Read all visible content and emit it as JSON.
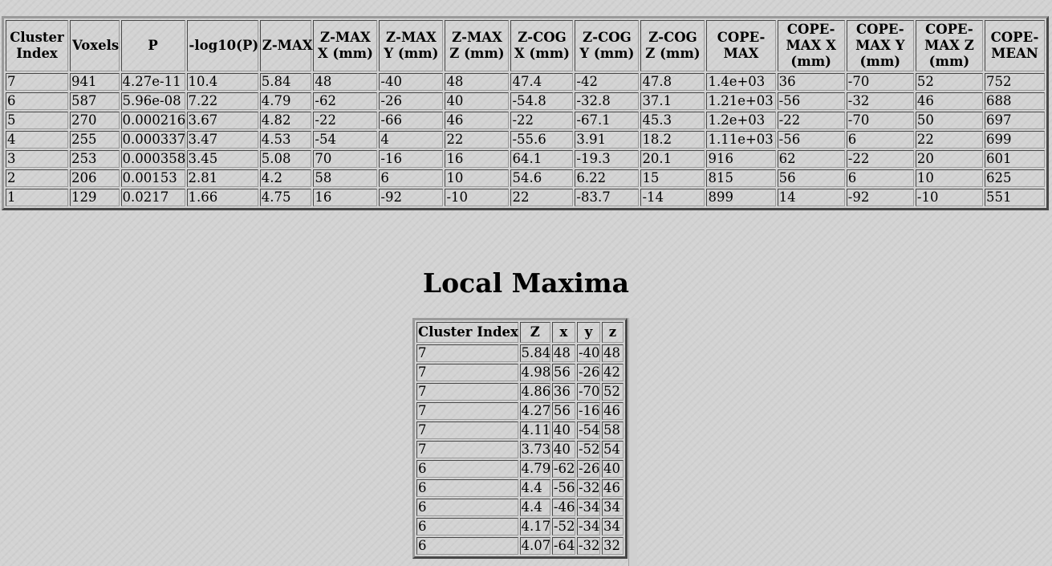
{
  "cluster_table": {
    "headers": [
      "Cluster\nIndex",
      "Voxels",
      "P",
      "-log10(P)",
      "Z-MAX",
      "Z-MAX\nX (mm)",
      "Z-MAX\nY (mm)",
      "Z-MAX\nZ (mm)",
      "Z-COG\nX (mm)",
      "Z-COG\nY (mm)",
      "Z-COG\nZ (mm)",
      "COPE-\nMAX",
      "COPE-\nMAX X\n(mm)",
      "COPE-\nMAX Y\n(mm)",
      "COPE-\nMAX Z\n(mm)",
      "COPE-\nMEAN"
    ],
    "rows": [
      [
        "7",
        "941",
        "4.27e-11",
        "10.4",
        "5.84",
        "48",
        "-40",
        "48",
        "47.4",
        "-42",
        "47.8",
        "1.4e+03",
        "36",
        "-70",
        "52",
        "752"
      ],
      [
        "6",
        "587",
        "5.96e-08",
        "7.22",
        "4.79",
        "-62",
        "-26",
        "40",
        "-54.8",
        "-32.8",
        "37.1",
        "1.21e+03",
        "-56",
        "-32",
        "46",
        "688"
      ],
      [
        "5",
        "270",
        "0.000216",
        "3.67",
        "4.82",
        "-22",
        "-66",
        "46",
        "-22",
        "-67.1",
        "45.3",
        "1.2e+03",
        "-22",
        "-70",
        "50",
        "697"
      ],
      [
        "4",
        "255",
        "0.000337",
        "3.47",
        "4.53",
        "-54",
        "4",
        "22",
        "-55.6",
        "3.91",
        "18.2",
        "1.11e+03",
        "-56",
        "6",
        "22",
        "699"
      ],
      [
        "3",
        "253",
        "0.000358",
        "3.45",
        "5.08",
        "70",
        "-16",
        "16",
        "64.1",
        "-19.3",
        "20.1",
        "916",
        "62",
        "-22",
        "20",
        "601"
      ],
      [
        "2",
        "206",
        "0.00153",
        "2.81",
        "4.2",
        "58",
        "6",
        "10",
        "54.6",
        "6.22",
        "15",
        "815",
        "56",
        "6",
        "10",
        "625"
      ],
      [
        "1",
        "129",
        "0.0217",
        "1.66",
        "4.75",
        "16",
        "-92",
        "-10",
        "22",
        "-83.7",
        "-14",
        "899",
        "14",
        "-92",
        "-10",
        "551"
      ]
    ]
  },
  "local_maxima": {
    "title": "Local Maxima",
    "headers": [
      "Cluster Index",
      "Z",
      "x",
      "y",
      "z"
    ],
    "rows": [
      [
        "7",
        "5.84",
        "48",
        "-40",
        "48"
      ],
      [
        "7",
        "4.98",
        "56",
        "-26",
        "42"
      ],
      [
        "7",
        "4.86",
        "36",
        "-70",
        "52"
      ],
      [
        "7",
        "4.27",
        "56",
        "-16",
        "46"
      ],
      [
        "7",
        "4.11",
        "40",
        "-54",
        "58"
      ],
      [
        "7",
        "3.73",
        "40",
        "-52",
        "54"
      ],
      [
        "6",
        "4.79",
        "-62",
        "-26",
        "40"
      ],
      [
        "6",
        "4.4",
        "-56",
        "-32",
        "46"
      ],
      [
        "6",
        "4.4",
        "-46",
        "-34",
        "34"
      ],
      [
        "6",
        "4.17",
        "-52",
        "-34",
        "34"
      ],
      [
        "6",
        "4.07",
        "-64",
        "-32",
        "32"
      ]
    ]
  }
}
